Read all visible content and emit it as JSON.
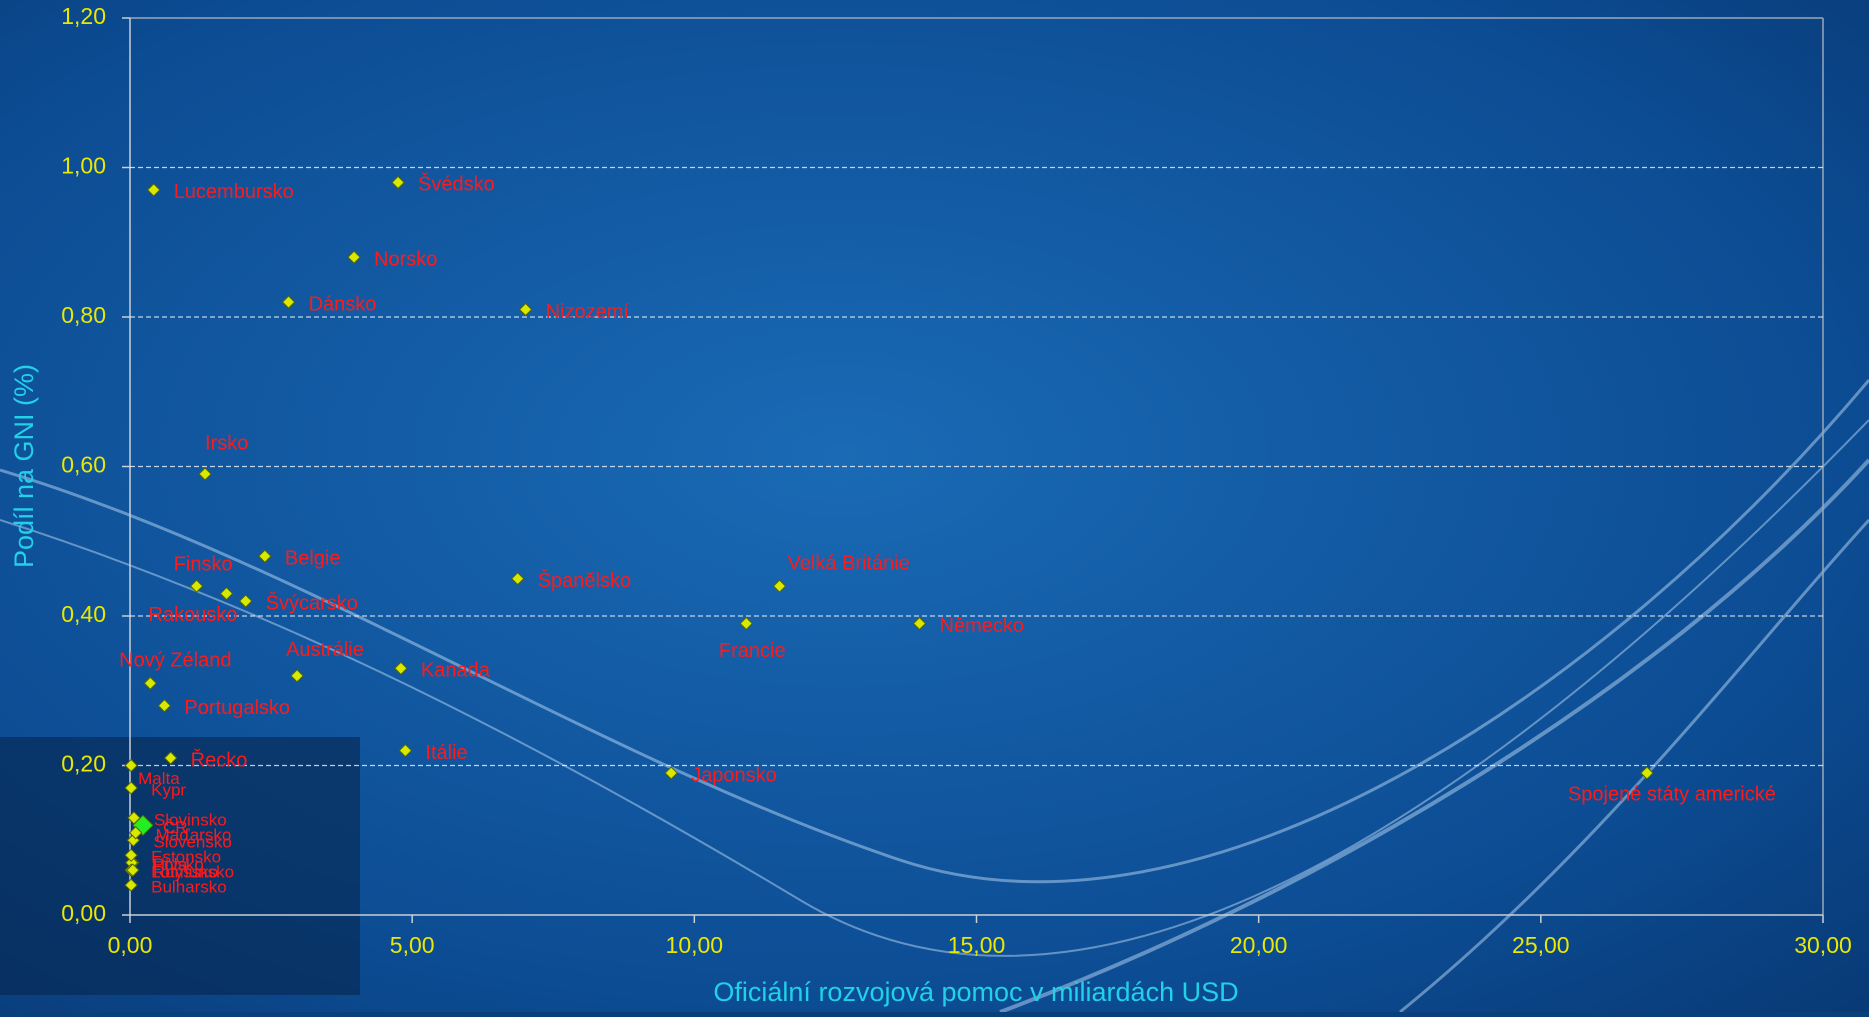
{
  "chart_data": {
    "type": "scatter",
    "y_label": "Podíl na GNI (%)",
    "x_label": "Oficiální rozvojová pomoc v miliardách USD",
    "xlim": [
      0,
      30
    ],
    "ylim": [
      0,
      1.2
    ],
    "xticks": [
      {
        "value": 0,
        "label": "0,00"
      },
      {
        "value": 5,
        "label": "5,00"
      },
      {
        "value": 10,
        "label": "10,00"
      },
      {
        "value": 15,
        "label": "15,00"
      },
      {
        "value": 20,
        "label": "20,00"
      },
      {
        "value": 25,
        "label": "25,00"
      },
      {
        "value": 30,
        "label": "30,00"
      }
    ],
    "yticks": [
      {
        "value": 0,
        "label": "0,00"
      },
      {
        "value": 0.2,
        "label": "0,20"
      },
      {
        "value": 0.4,
        "label": "0,40"
      },
      {
        "value": 0.6,
        "label": "0,60"
      },
      {
        "value": 0.8,
        "label": "0,80"
      },
      {
        "value": 1.0,
        "label": "1,00"
      },
      {
        "value": 1.2,
        "label": "1,20"
      }
    ],
    "grid": true,
    "color": "#d8e800",
    "label_color": "#ff1a1a",
    "point_labels": [
      "Lucembursko",
      "Švédsko",
      "Norsko",
      "Dánsko",
      "Nizozemí",
      "Irsko",
      "Belgie",
      "Finsko",
      "Rakousko",
      "Švýcarsko",
      "Španělsko",
      "Velká Británie",
      "Francie",
      "Německo",
      "Austrálie",
      "Kanada",
      "Nový Zéland",
      "Portugalsko",
      "Itálie",
      "Řecko",
      "Japonsko",
      "Spojené státy americké",
      "Malta",
      "Kypr",
      "Slovinsko",
      "ČR",
      "Slovensko",
      "Maďarsko",
      "Polsko",
      "Litva",
      "Estonsko",
      "Lotyšsko",
      "Rumunsko",
      "Bulharsko"
    ],
    "x": [
      0.42,
      4.75,
      3.97,
      2.81,
      7.01,
      1.33,
      2.39,
      1.18,
      1.71,
      2.05,
      6.87,
      11.51,
      10.92,
      13.99,
      2.96,
      4.8,
      0.36,
      0.61,
      4.88,
      0.72,
      9.59,
      26.88,
      0.02,
      0.02,
      0.07,
      0.23,
      0.06,
      0.1,
      0.05,
      0.03,
      0.02,
      0.02,
      0.05,
      0.02
    ],
    "values": [
      0.97,
      0.98,
      0.88,
      0.82,
      0.81,
      0.59,
      0.48,
      0.44,
      0.43,
      0.42,
      0.45,
      0.44,
      0.39,
      0.39,
      0.32,
      0.33,
      0.31,
      0.28,
      0.22,
      0.21,
      0.19,
      0.19,
      0.2,
      0.17,
      0.13,
      0.12,
      0.1,
      0.11,
      0.07,
      0.07,
      0.08,
      0.06,
      0.06,
      0.04
    ],
    "point_colors": [
      "#d8e800",
      "#d8e800",
      "#d8e800",
      "#d8e800",
      "#d8e800",
      "#d8e800",
      "#d8e800",
      "#d8e800",
      "#d8e800",
      "#d8e800",
      "#d8e800",
      "#d8e800",
      "#d8e800",
      "#d8e800",
      "#d8e800",
      "#d8e800",
      "#d8e800",
      "#d8e800",
      "#d8e800",
      "#d8e800",
      "#d8e800",
      "#d8e800",
      "#d8e800",
      "#d8e800",
      "#d8e800",
      "#22ee22",
      "#d8e800",
      "#d8e800",
      "#d8e800",
      "#d8e800",
      "#d8e800",
      "#d8e800",
      "#d8e800",
      "#d8e800"
    ]
  }
}
